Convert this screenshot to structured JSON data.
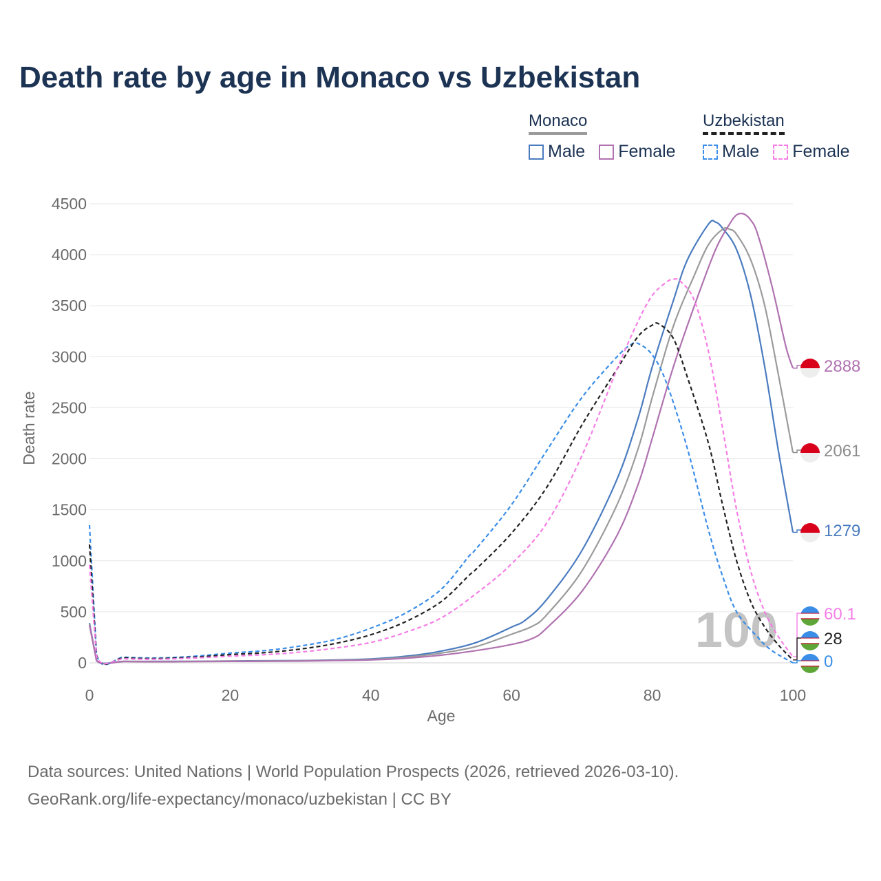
{
  "title": "Death rate by age in Monaco vs Uzbekistan",
  "legend": {
    "groups": [
      {
        "name": "Monaco",
        "line_color": "#9b9b9b",
        "dashed": false,
        "items": [
          {
            "label": "Male",
            "color": "#4a7bbf"
          },
          {
            "label": "Female",
            "color": "#b072b0"
          }
        ]
      },
      {
        "name": "Uzbekistan",
        "line_color": "#222222",
        "dashed": true,
        "items": [
          {
            "label": "Male",
            "color": "#3a8de8"
          },
          {
            "label": "Female",
            "color": "#f57ee6"
          }
        ]
      }
    ]
  },
  "chart_data": {
    "type": "line",
    "title": "Death rate by age in Monaco vs Uzbekistan",
    "xlabel": "Age",
    "ylabel": "Death rate",
    "xlim": [
      0,
      100
    ],
    "ylim": [
      0,
      4500
    ],
    "xticks": [
      0,
      20,
      40,
      60,
      80,
      100
    ],
    "yticks": [
      0,
      500,
      1000,
      1500,
      2000,
      2500,
      3000,
      3500,
      4000,
      4500
    ],
    "grid": true,
    "annotation": "100",
    "series": [
      {
        "name": "Monaco Male",
        "color": "#4a7bbf",
        "dashed": false,
        "flag": "Monaco",
        "end_label": "1279",
        "points": [
          [
            0,
            390
          ],
          [
            1,
            25
          ],
          [
            5,
            15
          ],
          [
            10,
            14
          ],
          [
            15,
            15
          ],
          [
            20,
            18
          ],
          [
            25,
            20
          ],
          [
            30,
            22
          ],
          [
            35,
            28
          ],
          [
            40,
            38
          ],
          [
            45,
            65
          ],
          [
            50,
            115
          ],
          [
            55,
            200
          ],
          [
            60,
            350
          ],
          [
            62,
            420
          ],
          [
            65,
            620
          ],
          [
            70,
            1100
          ],
          [
            75,
            1800
          ],
          [
            78,
            2400
          ],
          [
            80,
            2900
          ],
          [
            83,
            3550
          ],
          [
            85,
            3950
          ],
          [
            88,
            4300
          ],
          [
            89,
            4320
          ],
          [
            90,
            4260
          ],
          [
            92,
            4050
          ],
          [
            94,
            3600
          ],
          [
            96,
            2900
          ],
          [
            98,
            2050
          ],
          [
            100,
            1279
          ]
        ]
      },
      {
        "name": "Monaco Total",
        "color": "#9b9b9b",
        "dashed": false,
        "flag": "Monaco",
        "end_label": "2061",
        "points": [
          [
            0,
            380
          ],
          [
            1,
            22
          ],
          [
            5,
            14
          ],
          [
            10,
            13
          ],
          [
            15,
            14
          ],
          [
            20,
            16
          ],
          [
            25,
            18
          ],
          [
            30,
            20
          ],
          [
            35,
            25
          ],
          [
            40,
            33
          ],
          [
            45,
            55
          ],
          [
            50,
            95
          ],
          [
            55,
            160
          ],
          [
            60,
            280
          ],
          [
            63,
            360
          ],
          [
            65,
            470
          ],
          [
            70,
            900
          ],
          [
            75,
            1550
          ],
          [
            78,
            2100
          ],
          [
            80,
            2600
          ],
          [
            83,
            3300
          ],
          [
            86,
            3800
          ],
          [
            88,
            4100
          ],
          [
            90,
            4250
          ],
          [
            91,
            4250
          ],
          [
            92,
            4200
          ],
          [
            94,
            3950
          ],
          [
            96,
            3500
          ],
          [
            98,
            2800
          ],
          [
            100,
            2061
          ]
        ]
      },
      {
        "name": "Monaco Female",
        "color": "#b072b0",
        "dashed": false,
        "flag": "Monaco",
        "end_label": "2888",
        "points": [
          [
            0,
            370
          ],
          [
            1,
            20
          ],
          [
            5,
            12
          ],
          [
            10,
            11
          ],
          [
            15,
            12
          ],
          [
            20,
            14
          ],
          [
            25,
            15
          ],
          [
            30,
            17
          ],
          [
            35,
            22
          ],
          [
            40,
            28
          ],
          [
            45,
            45
          ],
          [
            50,
            75
          ],
          [
            55,
            120
          ],
          [
            60,
            180
          ],
          [
            63,
            240
          ],
          [
            65,
            340
          ],
          [
            70,
            700
          ],
          [
            75,
            1250
          ],
          [
            78,
            1750
          ],
          [
            80,
            2200
          ],
          [
            83,
            2900
          ],
          [
            86,
            3500
          ],
          [
            89,
            4050
          ],
          [
            91,
            4300
          ],
          [
            92,
            4390
          ],
          [
            93,
            4400
          ],
          [
            94,
            4340
          ],
          [
            95,
            4200
          ],
          [
            97,
            3700
          ],
          [
            99,
            3100
          ],
          [
            100,
            2888
          ]
        ]
      },
      {
        "name": "Uzbekistan Male",
        "color": "#3a8de8",
        "dashed": true,
        "flag": "Uzbekistan",
        "end_label": "0",
        "points": [
          [
            0,
            1350
          ],
          [
            1,
            85
          ],
          [
            5,
            55
          ],
          [
            10,
            48
          ],
          [
            15,
            65
          ],
          [
            20,
            95
          ],
          [
            25,
            120
          ],
          [
            30,
            165
          ],
          [
            35,
            230
          ],
          [
            40,
            340
          ],
          [
            45,
            490
          ],
          [
            50,
            720
          ],
          [
            54,
            1050
          ],
          [
            55,
            1120
          ],
          [
            60,
            1550
          ],
          [
            65,
            2080
          ],
          [
            70,
            2600
          ],
          [
            75,
            3000
          ],
          [
            77,
            3120
          ],
          [
            78,
            3130
          ],
          [
            80,
            3020
          ],
          [
            82,
            2750
          ],
          [
            85,
            2100
          ],
          [
            88,
            1300
          ],
          [
            90,
            850
          ],
          [
            92,
            500
          ],
          [
            95,
            250
          ],
          [
            97,
            120
          ],
          [
            100,
            0
          ]
        ]
      },
      {
        "name": "Uzbekistan Total",
        "color": "#222222",
        "dashed": true,
        "flag": "Uzbekistan",
        "end_label": "28",
        "points": [
          [
            0,
            1160
          ],
          [
            1,
            75
          ],
          [
            5,
            48
          ],
          [
            10,
            42
          ],
          [
            15,
            56
          ],
          [
            20,
            80
          ],
          [
            25,
            100
          ],
          [
            30,
            135
          ],
          [
            35,
            190
          ],
          [
            40,
            275
          ],
          [
            45,
            405
          ],
          [
            50,
            600
          ],
          [
            54,
            860
          ],
          [
            55,
            920
          ],
          [
            60,
            1270
          ],
          [
            65,
            1720
          ],
          [
            70,
            2330
          ],
          [
            75,
            2880
          ],
          [
            78,
            3200
          ],
          [
            80,
            3310
          ],
          [
            81,
            3320
          ],
          [
            83,
            3180
          ],
          [
            85,
            2800
          ],
          [
            88,
            2150
          ],
          [
            90,
            1550
          ],
          [
            92,
            1000
          ],
          [
            94,
            600
          ],
          [
            96,
            350
          ],
          [
            98,
            170
          ],
          [
            100,
            28
          ]
        ]
      },
      {
        "name": "Uzbekistan Female",
        "color": "#f57ee6",
        "dashed": true,
        "flag": "Uzbekistan",
        "end_label": "60.1",
        "points": [
          [
            0,
            960
          ],
          [
            1,
            65
          ],
          [
            5,
            40
          ],
          [
            10,
            36
          ],
          [
            15,
            47
          ],
          [
            20,
            65
          ],
          [
            25,
            80
          ],
          [
            30,
            105
          ],
          [
            35,
            145
          ],
          [
            40,
            200
          ],
          [
            45,
            300
          ],
          [
            50,
            440
          ],
          [
            55,
            680
          ],
          [
            60,
            970
          ],
          [
            65,
            1370
          ],
          [
            70,
            2030
          ],
          [
            75,
            2880
          ],
          [
            78,
            3350
          ],
          [
            80,
            3600
          ],
          [
            82,
            3730
          ],
          [
            83,
            3760
          ],
          [
            84,
            3740
          ],
          [
            86,
            3550
          ],
          [
            88,
            3050
          ],
          [
            90,
            2300
          ],
          [
            92,
            1500
          ],
          [
            94,
            900
          ],
          [
            96,
            500
          ],
          [
            98,
            250
          ],
          [
            100,
            60.1
          ]
        ]
      }
    ],
    "end_labels": [
      {
        "text": "2888",
        "color": "#b072b0",
        "flag": "Monaco"
      },
      {
        "text": "2061",
        "color": "#8c8c8c",
        "flag": "Monaco"
      },
      {
        "text": "1279",
        "color": "#4a7bbf",
        "flag": "Monaco"
      },
      {
        "text": "60.1",
        "color": "#f57ee6",
        "flag": "Uzbekistan"
      },
      {
        "text": "28",
        "color": "#222222",
        "flag": "Uzbekistan"
      },
      {
        "text": "0",
        "color": "#3a8de8",
        "flag": "Uzbekistan"
      }
    ]
  },
  "footer": {
    "source": "Data sources: United Nations | World Population Prospects (2026, retrieved 2026-03-10).",
    "attribution": "GeoRank.org/life-expectancy/monaco/uzbekistan | CC BY"
  }
}
